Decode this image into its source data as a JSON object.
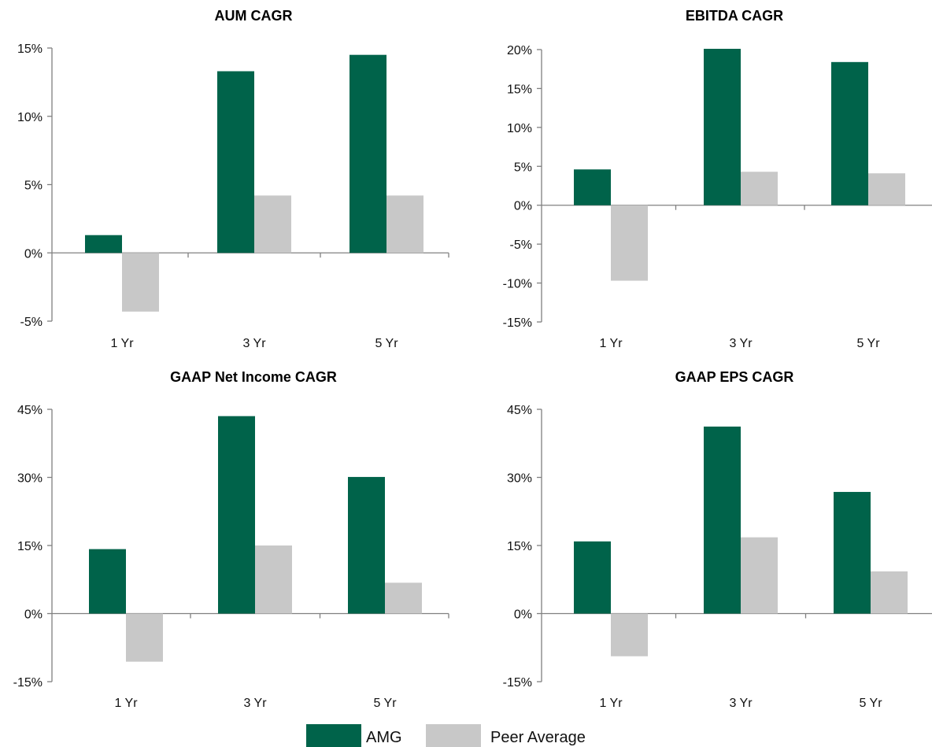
{
  "chart_data": [
    {
      "type": "bar",
      "title": "AUM CAGR",
      "categories": [
        "1 Yr",
        "3 Yr",
        "5 Yr"
      ],
      "series": [
        {
          "name": "AMG",
          "values": [
            1.3,
            13.3,
            14.5
          ]
        },
        {
          "name": "Peer Average",
          "values": [
            -4.3,
            4.2,
            4.2
          ]
        }
      ],
      "ylim": [
        -5,
        15
      ],
      "yticks": [
        -5,
        0,
        5,
        10,
        15
      ],
      "ytick_labels": [
        "-5%",
        "0%",
        "5%",
        "10%",
        "15%"
      ]
    },
    {
      "type": "bar",
      "title": "EBITDA CAGR",
      "categories": [
        "1 Yr",
        "3 Yr",
        "5 Yr"
      ],
      "series": [
        {
          "name": "AMG",
          "values": [
            4.6,
            20.1,
            18.4
          ]
        },
        {
          "name": "Peer Average",
          "values": [
            -9.7,
            4.3,
            4.1
          ]
        }
      ],
      "ylim": [
        -15,
        20
      ],
      "yticks": [
        -15,
        -10,
        -5,
        0,
        5,
        10,
        15,
        20
      ],
      "ytick_labels": [
        "-15%",
        "-10%",
        "-5%",
        "0%",
        "5%",
        "10%",
        "15%",
        "20%"
      ]
    },
    {
      "type": "bar",
      "title": "GAAP Net Income CAGR",
      "categories": [
        "1 Yr",
        "3 Yr",
        "5 Yr"
      ],
      "series": [
        {
          "name": "AMG",
          "values": [
            14.2,
            43.5,
            30.1
          ]
        },
        {
          "name": "Peer Average",
          "values": [
            -10.6,
            15.0,
            6.8
          ]
        }
      ],
      "ylim": [
        -15,
        45
      ],
      "yticks": [
        -15,
        0,
        15,
        30,
        45
      ],
      "ytick_labels": [
        "-15%",
        "0%",
        "15%",
        "30%",
        "45%"
      ]
    },
    {
      "type": "bar",
      "title": "GAAP EPS CAGR",
      "categories": [
        "1 Yr",
        "3 Yr",
        "5 Yr"
      ],
      "series": [
        {
          "name": "AMG",
          "values": [
            15.9,
            41.2,
            26.8
          ]
        },
        {
          "name": "Peer Average",
          "values": [
            -9.4,
            16.8,
            9.3
          ]
        }
      ],
      "ylim": [
        -15,
        45
      ],
      "yticks": [
        -15,
        0,
        15,
        30,
        45
      ],
      "ytick_labels": [
        "-15%",
        "0%",
        "15%",
        "30%",
        "45%"
      ]
    }
  ],
  "legend": {
    "items": [
      {
        "label": "AMG",
        "color": "#00634a"
      },
      {
        "label": "Peer Average",
        "color": "#c8c8c8"
      }
    ]
  },
  "colors": {
    "amg": "#00634a",
    "peer": "#c8c8c8",
    "axis": "#808080"
  }
}
